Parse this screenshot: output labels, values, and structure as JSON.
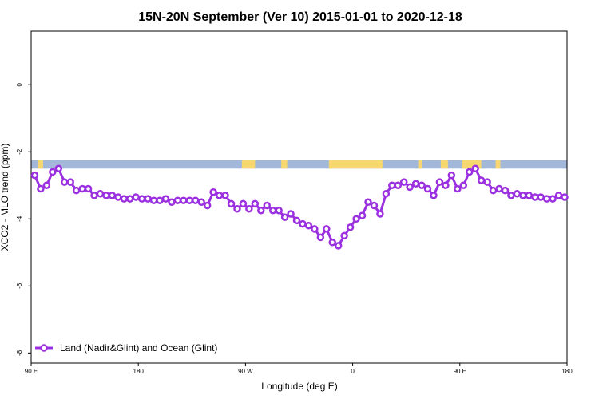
{
  "chart_data": {
    "type": "line",
    "title": "15N-20N September (Ver 10)   2015-01-01 to 2020-12-18",
    "xlabel": "Longitude (deg E)",
    "ylabel": "XCO2 - MLO trend (ppm)",
    "x_ticks": [
      {
        "value": 90,
        "label": "90 E"
      },
      {
        "value": 180,
        "label": "180"
      },
      {
        "value": 270,
        "label": "90 W"
      },
      {
        "value": 360,
        "label": "0"
      },
      {
        "value": 450,
        "label": "90 E"
      },
      {
        "value": 540,
        "label": "180"
      }
    ],
    "y_ticks": [
      {
        "value": 0,
        "label": "0"
      },
      {
        "value": -2,
        "label": "-2"
      },
      {
        "value": -4,
        "label": "-4"
      },
      {
        "value": -6,
        "label": "-6"
      },
      {
        "value": -8,
        "label": "-8"
      }
    ],
    "xlim": [
      90,
      540
    ],
    "ylim": [
      -8.3,
      1.6
    ],
    "grid": false,
    "legend_position": "bottom-left",
    "land_mask_band": {
      "y_range": [
        -2.25,
        -2.5
      ],
      "land_color": "#f7d870",
      "ocean_color": "#a3b8d8"
    },
    "land_segments_lon": [
      [
        96,
        100
      ],
      [
        267,
        278
      ],
      [
        300,
        305
      ],
      [
        340,
        385
      ],
      [
        415,
        418
      ],
      [
        434,
        440
      ],
      [
        452,
        468
      ],
      [
        480,
        484
      ]
    ],
    "series": [
      {
        "name": "Land (Nadir&Glint) and Ocean (Glint)",
        "color": "#9b30e0",
        "x": [
          93,
          98,
          103,
          108,
          113,
          118,
          123,
          128,
          133,
          138,
          143,
          148,
          153,
          158,
          163,
          168,
          173,
          178,
          183,
          188,
          193,
          198,
          203,
          208,
          213,
          218,
          223,
          228,
          233,
          238,
          243,
          248,
          253,
          258,
          263,
          268,
          273,
          278,
          283,
          288,
          293,
          298,
          303,
          308,
          313,
          318,
          323,
          328,
          333,
          338,
          343,
          348,
          353,
          358,
          363,
          368,
          373,
          378,
          383,
          388,
          393,
          398,
          403,
          408,
          413,
          418,
          423,
          428,
          433,
          438,
          443,
          448,
          453,
          458,
          463,
          468,
          473,
          478,
          483,
          488,
          493,
          498,
          503,
          508,
          513,
          518,
          523,
          528,
          533,
          538
        ],
        "y": [
          -2.7,
          -3.1,
          -3.0,
          -2.6,
          -2.5,
          -2.9,
          -2.9,
          -3.15,
          -3.1,
          -3.1,
          -3.3,
          -3.25,
          -3.3,
          -3.3,
          -3.35,
          -3.4,
          -3.4,
          -3.35,
          -3.4,
          -3.4,
          -3.45,
          -3.45,
          -3.4,
          -3.5,
          -3.45,
          -3.45,
          -3.45,
          -3.45,
          -3.5,
          -3.6,
          -3.2,
          -3.3,
          -3.3,
          -3.55,
          -3.7,
          -3.55,
          -3.7,
          -3.55,
          -3.75,
          -3.6,
          -3.75,
          -3.75,
          -3.95,
          -3.85,
          -4.05,
          -4.15,
          -4.2,
          -4.3,
          -4.55,
          -4.3,
          -4.7,
          -4.8,
          -4.5,
          -4.25,
          -4.0,
          -3.9,
          -3.5,
          -3.6,
          -3.85,
          -3.25,
          -3.0,
          -3.0,
          -2.9,
          -3.05,
          -2.95,
          -3.0,
          -3.1,
          -3.3,
          -2.9,
          -3.0,
          -2.7,
          -3.1,
          -3.0,
          -2.6,
          -2.5,
          -2.85,
          -2.9,
          -3.15,
          -3.1,
          -3.15,
          -3.3,
          -3.25,
          -3.3,
          -3.3,
          -3.35,
          -3.35,
          -3.4,
          -3.4,
          -3.3,
          -3.35
        ]
      }
    ]
  }
}
